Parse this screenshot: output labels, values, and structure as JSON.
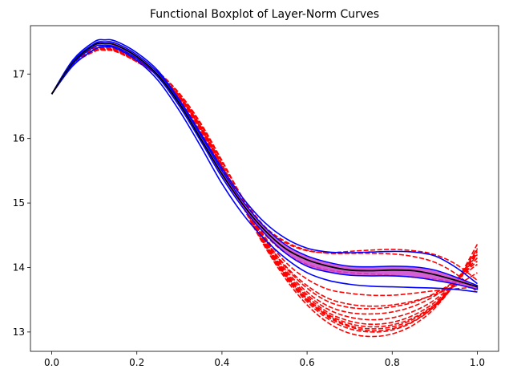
{
  "chart_data": {
    "type": "line",
    "title": "Functional Boxplot of Layer-Norm Curves",
    "xlabel": "",
    "ylabel": "",
    "xlim": [
      -0.05,
      1.05
    ],
    "ylim": [
      12.7,
      17.75
    ],
    "x_ticks": [
      0.0,
      0.2,
      0.4,
      0.6,
      0.8,
      1.0
    ],
    "x_tick_labels": [
      "0.0",
      "0.2",
      "0.4",
      "0.6",
      "0.8",
      "1.0"
    ],
    "y_ticks": [
      13,
      14,
      15,
      16,
      17
    ],
    "y_tick_labels": [
      "13",
      "14",
      "15",
      "16",
      "17"
    ],
    "grid": false,
    "colors": {
      "outlier": "#ff0000",
      "envelope": "#0000ff",
      "band": "#cc44cc",
      "median": "#000000"
    },
    "knots_x": [
      0.0,
      0.05,
      0.1,
      0.125,
      0.15,
      0.2,
      0.25,
      0.3,
      0.35,
      0.4,
      0.45,
      0.5,
      0.55,
      0.6,
      0.65,
      0.7,
      0.75,
      0.8,
      0.85,
      0.9,
      0.95,
      1.0
    ],
    "band": {
      "upper": [
        16.69,
        17.2,
        17.47,
        17.5,
        17.48,
        17.3,
        17.02,
        16.58,
        16.05,
        15.5,
        15.02,
        14.63,
        14.35,
        14.18,
        14.08,
        14.02,
        14.01,
        14.02,
        14.01,
        13.96,
        13.85,
        13.72
      ],
      "lower": [
        16.69,
        17.16,
        17.42,
        17.44,
        17.42,
        17.24,
        16.95,
        16.5,
        15.96,
        15.4,
        14.92,
        14.53,
        14.22,
        14.02,
        13.93,
        13.88,
        13.87,
        13.87,
        13.85,
        13.8,
        13.74,
        13.66
      ]
    },
    "median": [
      16.69,
      17.18,
      17.45,
      17.47,
      17.45,
      17.27,
      16.98,
      16.54,
      16.0,
      15.45,
      14.97,
      14.58,
      14.29,
      14.12,
      14.02,
      13.96,
      13.95,
      13.96,
      13.95,
      13.89,
      13.8,
      13.7
    ],
    "envelope": [
      {
        "values": [
          16.69,
          17.22,
          17.5,
          17.53,
          17.51,
          17.33,
          17.05,
          16.6,
          16.08,
          15.54,
          15.07,
          14.7,
          14.45,
          14.3,
          14.24,
          14.23,
          14.24,
          14.25,
          14.24,
          14.18,
          14.0,
          13.75
        ]
      },
      {
        "values": [
          16.69,
          17.13,
          17.38,
          17.42,
          17.4,
          17.21,
          16.9,
          16.43,
          15.88,
          15.3,
          14.82,
          14.44,
          14.14,
          13.92,
          13.8,
          13.74,
          13.71,
          13.7,
          13.69,
          13.68,
          13.66,
          13.62
        ]
      }
    ],
    "outliers": [
      {
        "values": [
          16.69,
          17.16,
          17.38,
          17.4,
          17.38,
          17.21,
          16.96,
          16.59,
          16.1,
          15.53,
          14.98,
          14.52,
          14.22,
          14.05,
          13.96,
          13.92,
          13.9,
          13.88,
          13.85,
          13.82,
          13.77,
          13.72
        ]
      },
      {
        "values": [
          16.69,
          17.15,
          17.37,
          17.38,
          17.36,
          17.19,
          16.97,
          16.62,
          16.13,
          15.55,
          14.98,
          14.48,
          14.08,
          13.82,
          13.66,
          13.6,
          13.57,
          13.57,
          13.6,
          13.64,
          13.67,
          13.7
        ]
      },
      {
        "values": [
          16.69,
          17.14,
          17.36,
          17.38,
          17.36,
          17.2,
          16.98,
          16.63,
          16.15,
          15.57,
          14.98,
          14.45,
          14.02,
          13.72,
          13.52,
          13.43,
          13.4,
          13.42,
          13.48,
          13.58,
          13.72,
          13.92
        ]
      },
      {
        "values": [
          16.69,
          17.14,
          17.35,
          17.37,
          17.35,
          17.2,
          16.99,
          16.65,
          16.17,
          15.58,
          14.97,
          14.42,
          13.96,
          13.62,
          13.4,
          13.3,
          13.28,
          13.31,
          13.4,
          13.56,
          13.8,
          14.1
        ]
      },
      {
        "values": [
          16.69,
          17.15,
          17.37,
          17.39,
          17.37,
          17.21,
          16.98,
          16.64,
          16.16,
          15.57,
          14.96,
          14.38,
          13.9,
          13.55,
          13.3,
          13.17,
          13.12,
          13.15,
          13.26,
          13.46,
          13.78,
          14.22
        ]
      },
      {
        "values": [
          16.69,
          17.15,
          17.36,
          17.38,
          17.36,
          17.2,
          16.99,
          16.66,
          16.18,
          15.58,
          14.95,
          14.35,
          13.85,
          13.47,
          13.2,
          13.05,
          13.0,
          13.03,
          13.16,
          13.4,
          13.78,
          14.3
        ]
      },
      {
        "values": [
          16.69,
          17.16,
          17.38,
          17.4,
          17.38,
          17.21,
          16.98,
          16.64,
          16.16,
          15.56,
          14.93,
          14.33,
          13.82,
          13.42,
          13.14,
          12.98,
          12.93,
          12.97,
          13.11,
          13.37,
          13.78,
          14.36
        ]
      },
      {
        "values": [
          16.69,
          17.14,
          17.35,
          17.37,
          17.35,
          17.19,
          16.99,
          16.66,
          16.19,
          15.6,
          14.96,
          14.37,
          13.88,
          13.52,
          13.27,
          13.13,
          13.08,
          13.11,
          13.22,
          13.43,
          13.77,
          14.2
        ]
      },
      {
        "values": [
          16.69,
          17.15,
          17.36,
          17.38,
          17.36,
          17.2,
          16.99,
          16.65,
          16.17,
          15.58,
          14.95,
          14.4,
          13.93,
          13.58,
          13.35,
          13.23,
          13.19,
          13.22,
          13.32,
          13.5,
          13.78,
          14.15
        ]
      },
      {
        "values": [
          16.69,
          17.15,
          17.37,
          17.39,
          17.37,
          17.21,
          16.99,
          16.64,
          16.15,
          15.57,
          14.97,
          14.44,
          14.0,
          13.68,
          13.47,
          13.38,
          13.36,
          13.39,
          13.46,
          13.6,
          13.8,
          14.05
        ]
      },
      {
        "values": [
          16.69,
          17.17,
          17.4,
          17.42,
          17.4,
          17.24,
          17.02,
          16.69,
          16.22,
          15.64,
          15.05,
          14.62,
          14.38,
          14.26,
          14.23,
          14.25,
          14.27,
          14.28,
          14.26,
          14.2,
          14.05,
          13.8
        ]
      },
      {
        "values": [
          16.69,
          17.16,
          17.39,
          17.41,
          17.39,
          17.23,
          17.03,
          16.7,
          16.24,
          15.66,
          15.07,
          14.64,
          14.4,
          14.27,
          14.22,
          14.22,
          14.22,
          14.21,
          14.17,
          14.08,
          13.9,
          13.62
        ]
      },
      {
        "values": [
          16.69,
          17.14,
          17.36,
          17.38,
          17.36,
          17.2,
          16.99,
          16.66,
          16.19,
          15.6,
          14.97,
          14.4,
          13.9,
          13.5,
          13.23,
          13.08,
          13.02,
          13.05,
          13.17,
          13.4,
          13.76,
          14.25
        ]
      },
      {
        "values": [
          16.69,
          17.15,
          17.37,
          17.39,
          17.37,
          17.21,
          16.99,
          16.66,
          16.18,
          15.58,
          14.95,
          14.36,
          13.87,
          13.5,
          13.25,
          13.1,
          13.05,
          13.08,
          13.2,
          13.42,
          13.78,
          14.28
        ]
      }
    ]
  }
}
